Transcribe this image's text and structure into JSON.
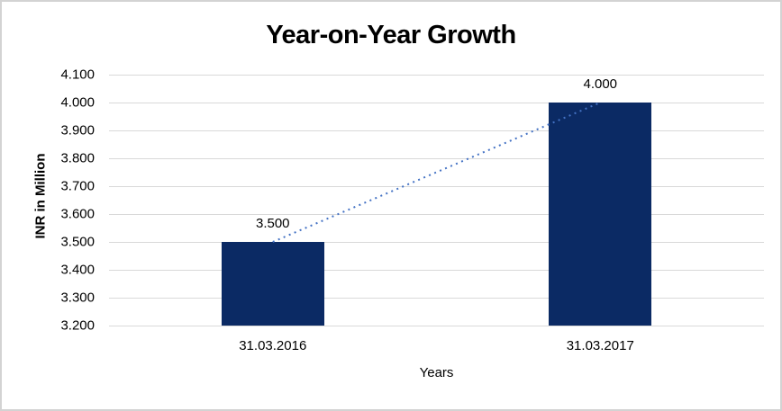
{
  "chart_data": {
    "type": "bar",
    "title": "Year-on-Year Growth",
    "xlabel": "Years",
    "ylabel": "INR in Million",
    "categories": [
      "31.03.2016",
      "31.03.2017"
    ],
    "values": [
      3500,
      4000
    ],
    "value_labels": [
      "3.500",
      "4.000"
    ],
    "ylim": [
      3200,
      4100
    ],
    "yticks": [
      3200,
      3300,
      3400,
      3500,
      3600,
      3700,
      3800,
      3900,
      4000,
      4100
    ],
    "ytick_labels": [
      "3.200",
      "3.300",
      "3.400",
      "3.500",
      "3.600",
      "3.700",
      "3.800",
      "3.900",
      "4.000",
      "4.100"
    ],
    "grid": "horizontal",
    "legend": "none",
    "trendline": {
      "style": "dotted",
      "from_value": 3500,
      "to_value": 4000
    }
  },
  "colors": {
    "bar_fill": "#0b2a64",
    "trendline": "#4472c4",
    "gridline": "#d9d9d9",
    "text": "#000000",
    "frame_border": "#d3d3d3",
    "background": "#ffffff"
  }
}
